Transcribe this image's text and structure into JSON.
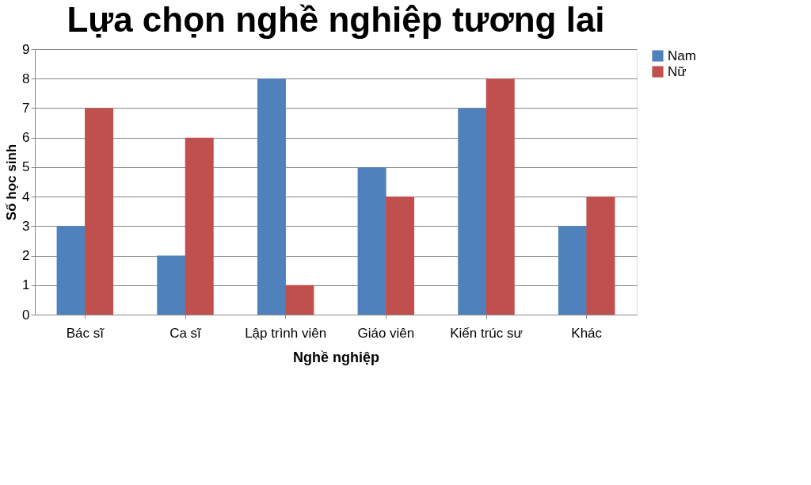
{
  "chart_data": {
    "type": "bar",
    "title": "Lựa chọn nghề nghiệp tương lai",
    "xlabel": "Nghề nghiệp",
    "ylabel": "Số học sinh",
    "categories": [
      "Bác sĩ",
      "Ca sĩ",
      "Lập trình viên",
      "Giáo viên",
      "Kiến trúc sư",
      "Khác"
    ],
    "series": [
      {
        "name": "Nam",
        "color": "#4f81bd",
        "values": [
          3,
          2,
          8,
          5,
          7,
          3
        ]
      },
      {
        "name": "Nữ",
        "color": "#c0504d",
        "values": [
          7,
          6,
          1,
          4,
          8,
          4
        ]
      }
    ],
    "ylim": [
      0,
      9
    ],
    "yticks": [
      0,
      1,
      2,
      3,
      4,
      5,
      6,
      7,
      8,
      9
    ],
    "grid": "y",
    "legend": "right"
  }
}
